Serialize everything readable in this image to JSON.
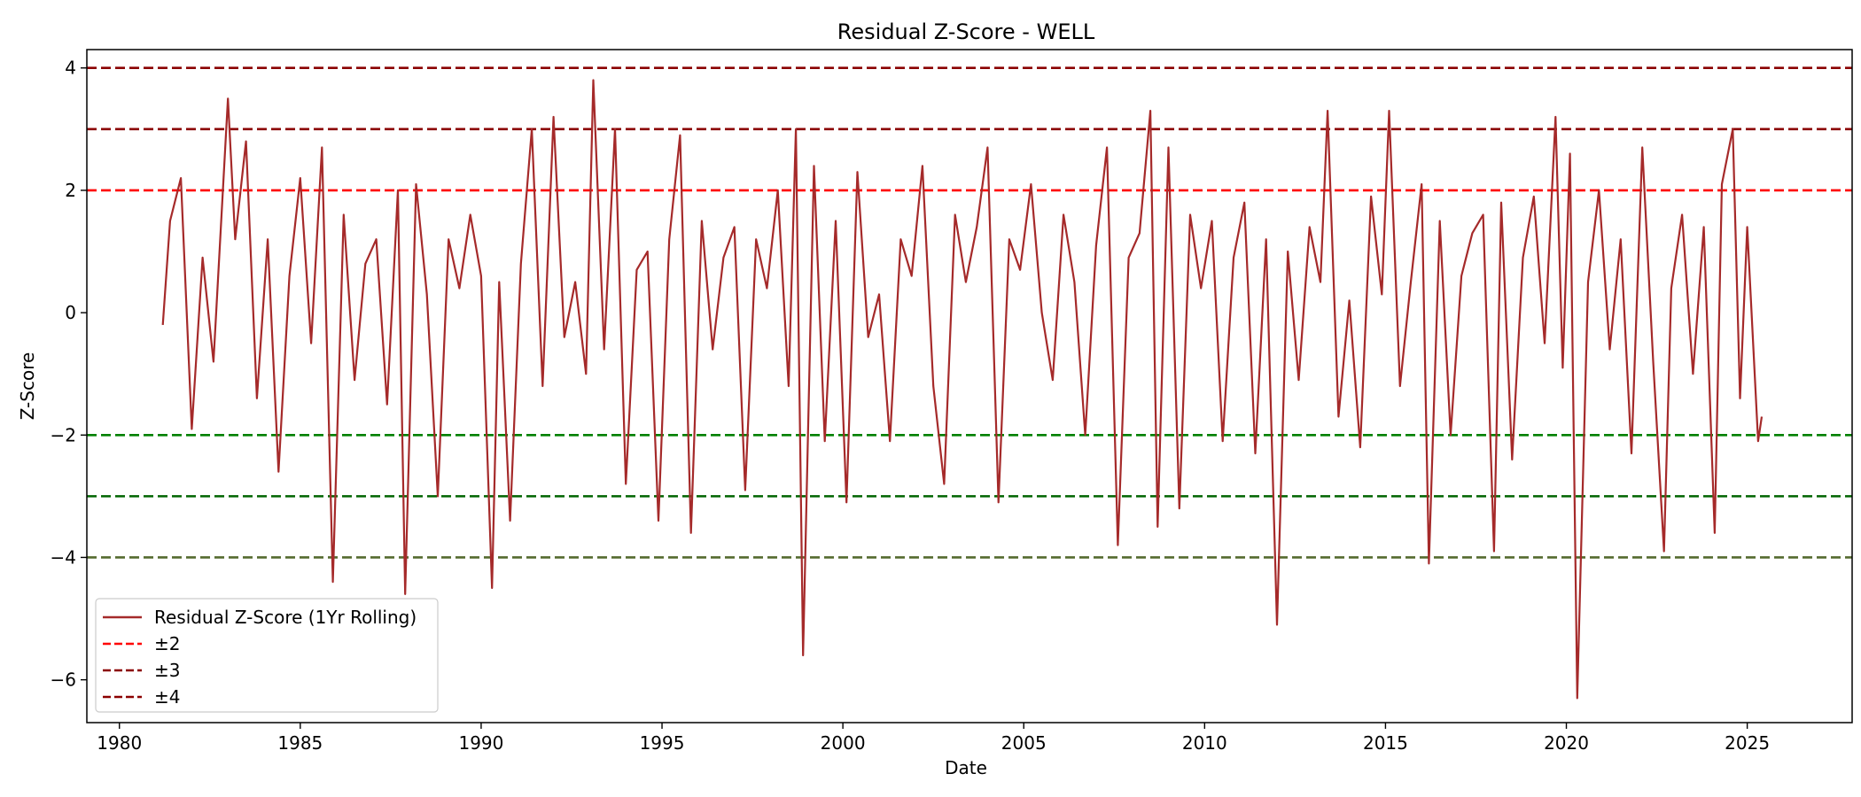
{
  "chart_data": {
    "type": "line",
    "title": "Residual Z-Score - WELL",
    "xlabel": "Date",
    "ylabel": "Z-Score",
    "xlim": [
      1979.1,
      2027.9
    ],
    "ylim": [
      -6.7,
      4.3
    ],
    "x_ticks": [
      1980,
      1985,
      1990,
      1995,
      2000,
      2005,
      2010,
      2015,
      2020,
      2025
    ],
    "x_tick_labels": [
      "1980",
      "1985",
      "1990",
      "1995",
      "2000",
      "2005",
      "2010",
      "2015",
      "2020",
      "2025"
    ],
    "y_ticks": [
      4,
      2,
      0,
      -2,
      -4,
      -6
    ],
    "y_tick_labels": [
      "4",
      "2",
      "0",
      "−2",
      "−4",
      "−6"
    ],
    "grid": false,
    "legend_position": "lower-left",
    "reference_lines": [
      {
        "y": 4,
        "color": "#8b0000",
        "legend": "±4"
      },
      {
        "y": 3,
        "color": "#8b0000",
        "legend": "±3"
      },
      {
        "y": 2,
        "color": "#ff0000",
        "legend": "±2"
      },
      {
        "y": -2,
        "color": "#008000",
        "legend": ""
      },
      {
        "y": -3,
        "color": "#006400",
        "legend": ""
      },
      {
        "y": -4,
        "color": "#556b2f",
        "legend": ""
      }
    ],
    "series": [
      {
        "name": "Residual Z-Score (1Yr Rolling)",
        "color": "#a52a2a",
        "x": [
          1981.2,
          1981.4,
          1981.7,
          1982.0,
          1982.3,
          1982.6,
          1983.0,
          1983.2,
          1983.5,
          1983.8,
          1984.1,
          1984.4,
          1984.7,
          1985.0,
          1985.3,
          1985.6,
          1985.9,
          1986.2,
          1986.5,
          1986.8,
          1987.1,
          1987.4,
          1987.7,
          1987.9,
          1988.2,
          1988.5,
          1988.8,
          1989.1,
          1989.4,
          1989.7,
          1990.0,
          1990.3,
          1990.5,
          1990.8,
          1991.1,
          1991.4,
          1991.7,
          1992.0,
          1992.3,
          1992.6,
          1992.9,
          1993.1,
          1993.4,
          1993.7,
          1994.0,
          1994.3,
          1994.6,
          1994.9,
          1995.2,
          1995.5,
          1995.8,
          1996.1,
          1996.4,
          1996.7,
          1997.0,
          1997.3,
          1997.6,
          1997.9,
          1998.2,
          1998.5,
          1998.7,
          1998.9,
          1999.2,
          1999.5,
          1999.8,
          2000.1,
          2000.4,
          2000.7,
          2001.0,
          2001.3,
          2001.6,
          2001.9,
          2002.2,
          2002.5,
          2002.8,
          2003.1,
          2003.4,
          2003.7,
          2004.0,
          2004.3,
          2004.6,
          2004.9,
          2005.2,
          2005.5,
          2005.8,
          2006.1,
          2006.4,
          2006.7,
          2007.0,
          2007.3,
          2007.6,
          2007.9,
          2008.2,
          2008.5,
          2008.7,
          2009.0,
          2009.3,
          2009.6,
          2009.9,
          2010.2,
          2010.5,
          2010.8,
          2011.1,
          2011.4,
          2011.7,
          2012.0,
          2012.3,
          2012.6,
          2012.9,
          2013.2,
          2013.4,
          2013.7,
          2014.0,
          2014.3,
          2014.6,
          2014.9,
          2015.1,
          2015.4,
          2015.7,
          2016.0,
          2016.2,
          2016.5,
          2016.8,
          2017.1,
          2017.4,
          2017.7,
          2018.0,
          2018.2,
          2018.5,
          2018.8,
          2019.1,
          2019.4,
          2019.7,
          2019.9,
          2020.1,
          2020.3,
          2020.6,
          2020.9,
          2021.2,
          2021.5,
          2021.8,
          2022.1,
          2022.4,
          2022.7,
          2022.9,
          2023.2,
          2023.5,
          2023.8,
          2024.1,
          2024.3,
          2024.6,
          2024.8,
          2025.0,
          2025.3,
          2025.4
        ],
        "values": [
          -0.2,
          1.5,
          2.2,
          -1.9,
          0.9,
          -0.8,
          3.5,
          1.2,
          2.8,
          -1.4,
          1.2,
          -2.6,
          0.6,
          2.2,
          -0.5,
          2.7,
          -4.4,
          1.6,
          -1.1,
          0.8,
          1.2,
          -1.5,
          2.0,
          -4.6,
          2.1,
          0.3,
          -3.0,
          1.2,
          0.4,
          1.6,
          0.6,
          -4.5,
          0.5,
          -3.4,
          0.8,
          3.0,
          -1.2,
          3.2,
          -0.4,
          0.5,
          -1.0,
          3.8,
          -0.6,
          3.0,
          -2.8,
          0.7,
          1.0,
          -3.4,
          1.2,
          2.9,
          -3.6,
          1.5,
          -0.6,
          0.9,
          1.4,
          -2.9,
          1.2,
          0.4,
          2.0,
          -1.2,
          3.0,
          -5.6,
          2.4,
          -2.1,
          1.5,
          -3.1,
          2.3,
          -0.4,
          0.3,
          -2.1,
          1.2,
          0.6,
          2.4,
          -1.2,
          -2.8,
          1.6,
          0.5,
          1.4,
          2.7,
          -3.1,
          1.2,
          0.7,
          2.1,
          0.0,
          -1.1,
          1.6,
          0.5,
          -2.0,
          1.1,
          2.7,
          -3.8,
          0.9,
          1.3,
          3.3,
          -3.5,
          2.7,
          -3.2,
          1.6,
          0.4,
          1.5,
          -2.1,
          0.9,
          1.8,
          -2.3,
          1.2,
          -5.1,
          1.0,
          -1.1,
          1.4,
          0.5,
          3.3,
          -1.7,
          0.2,
          -2.2,
          1.9,
          0.3,
          3.3,
          -1.2,
          0.5,
          2.1,
          -4.1,
          1.5,
          -2.0,
          0.6,
          1.3,
          1.6,
          -3.9,
          1.8,
          -2.4,
          0.9,
          1.9,
          -0.5,
          3.2,
          -0.9,
          2.6,
          -6.3,
          0.5,
          2.0,
          -0.6,
          1.2,
          -2.3,
          2.7,
          -0.8,
          -3.9,
          0.4,
          1.6,
          -1.0,
          1.4,
          -3.6,
          2.1,
          3.0,
          -1.4,
          1.4,
          -2.1,
          -1.7
        ]
      }
    ]
  }
}
